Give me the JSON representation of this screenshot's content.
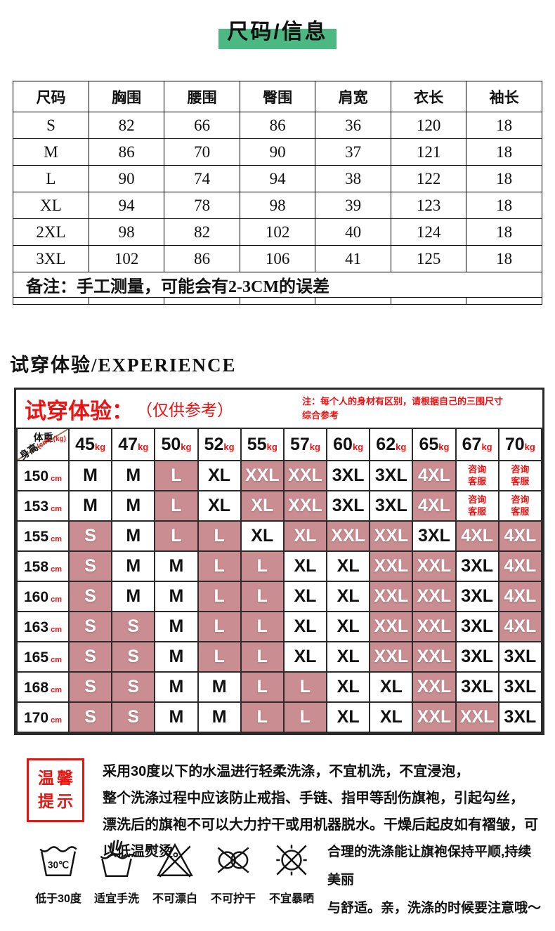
{
  "titles": {
    "size_title": "尺码/信息",
    "experience_heading": "试穿体验/EXPERIENCE"
  },
  "colors": {
    "green_highlight": "#4cb983",
    "pink_cell": "#ca8d91",
    "red_accent": "#ee1111",
    "table_border_dark": "#2b2b2b",
    "corner_diagonal": "#a1825d"
  },
  "size_table": {
    "headers": [
      "尺码",
      "胸围",
      "腰围",
      "臀围",
      "肩宽",
      "衣长",
      "袖长"
    ],
    "rows": [
      [
        "S",
        "82",
        "66",
        "86",
        "36",
        "120",
        "18"
      ],
      [
        "M",
        "86",
        "70",
        "90",
        "37",
        "121",
        "18"
      ],
      [
        "L",
        "90",
        "74",
        "94",
        "38",
        "122",
        "18"
      ],
      [
        "XL",
        "94",
        "78",
        "98",
        "39",
        "123",
        "18"
      ],
      [
        "2XL",
        "98",
        "82",
        "102",
        "40",
        "124",
        "18"
      ],
      [
        "3XL",
        "102",
        "86",
        "106",
        "41",
        "125",
        "18"
      ]
    ],
    "note": "备注：手工测量，可能会有2-3CM的误差"
  },
  "experience_table": {
    "title": "试穿体验：",
    "title_sub": "（仅供参考）",
    "note_line1": "注：每个人的身材有区别，请根据自己的三围尺寸",
    "note_line2": "综合参考",
    "corner": {
      "weight_label": "体重",
      "weight_unit": "(kg)",
      "height_label": "身高",
      "height_unit": "(cm)"
    },
    "weights": [
      {
        "num": "45",
        "unit": "kg"
      },
      {
        "num": "47",
        "unit": "kg"
      },
      {
        "num": "50",
        "unit": "kg"
      },
      {
        "num": "52",
        "unit": "kg"
      },
      {
        "num": "55",
        "unit": "kg"
      },
      {
        "num": "57",
        "unit": "kg"
      },
      {
        "num": "60",
        "unit": "kg"
      },
      {
        "num": "62",
        "unit": "kg"
      },
      {
        "num": "65",
        "unit": "kg"
      },
      {
        "num": "67",
        "unit": "kg"
      },
      {
        "num": "70",
        "unit": "kg"
      }
    ],
    "rows": [
      {
        "height": "150",
        "unit": "cm",
        "cells": [
          {
            "v": "M"
          },
          {
            "v": "M"
          },
          {
            "v": "L",
            "hl": true
          },
          {
            "v": "XL"
          },
          {
            "v": "XXL",
            "hl": true
          },
          {
            "v": "XXL",
            "hl": true
          },
          {
            "v": "3XL"
          },
          {
            "v": "3XL"
          },
          {
            "v": "4XL",
            "hl": true
          },
          {
            "v": "咨询客服",
            "service": true
          },
          {
            "v": "咨询客服",
            "service": true
          }
        ]
      },
      {
        "height": "153",
        "unit": "cm",
        "cells": [
          {
            "v": "M"
          },
          {
            "v": "M"
          },
          {
            "v": "L",
            "hl": true
          },
          {
            "v": "XL"
          },
          {
            "v": "XL",
            "hl": true
          },
          {
            "v": "XXL",
            "hl": true
          },
          {
            "v": "3XL"
          },
          {
            "v": "3XL"
          },
          {
            "v": "4XL",
            "hl": true
          },
          {
            "v": "咨询客服",
            "service": true
          },
          {
            "v": "咨询客服",
            "service": true
          }
        ]
      },
      {
        "height": "155",
        "unit": "cm",
        "cells": [
          {
            "v": "S",
            "hl": true
          },
          {
            "v": "M"
          },
          {
            "v": "L",
            "hl": true
          },
          {
            "v": "L",
            "hl": true
          },
          {
            "v": "XL"
          },
          {
            "v": "XL",
            "hl": true
          },
          {
            "v": "XXL",
            "hl": true
          },
          {
            "v": "XXL",
            "hl": true
          },
          {
            "v": "3XL"
          },
          {
            "v": "4XL",
            "hl": true
          },
          {
            "v": "4XL",
            "hl": true
          }
        ]
      },
      {
        "height": "158",
        "unit": "cm",
        "cells": [
          {
            "v": "S",
            "hl": true
          },
          {
            "v": "M"
          },
          {
            "v": "M"
          },
          {
            "v": "L",
            "hl": true
          },
          {
            "v": "L",
            "hl": true
          },
          {
            "v": "XL"
          },
          {
            "v": "XL"
          },
          {
            "v": "XXL",
            "hl": true
          },
          {
            "v": "XXL",
            "hl": true
          },
          {
            "v": "3XL"
          },
          {
            "v": "4XL",
            "hl": true
          }
        ]
      },
      {
        "height": "160",
        "unit": "cm",
        "cells": [
          {
            "v": "S",
            "hl": true
          },
          {
            "v": "M"
          },
          {
            "v": "M"
          },
          {
            "v": "L",
            "hl": true
          },
          {
            "v": "L",
            "hl": true
          },
          {
            "v": "XL"
          },
          {
            "v": "XL"
          },
          {
            "v": "XXL",
            "hl": true
          },
          {
            "v": "XXL",
            "hl": true
          },
          {
            "v": "3XL"
          },
          {
            "v": "4XL",
            "hl": true
          }
        ]
      },
      {
        "height": "163",
        "unit": "cm",
        "cells": [
          {
            "v": "S",
            "hl": true
          },
          {
            "v": "S",
            "hl": true
          },
          {
            "v": "M"
          },
          {
            "v": "L",
            "hl": true
          },
          {
            "v": "L",
            "hl": true
          },
          {
            "v": "XL"
          },
          {
            "v": "XL"
          },
          {
            "v": "XXL",
            "hl": true
          },
          {
            "v": "XXL",
            "hl": true
          },
          {
            "v": "3XL"
          },
          {
            "v": "4XL",
            "hl": true
          }
        ]
      },
      {
        "height": "165",
        "unit": "cm",
        "cells": [
          {
            "v": "S",
            "hl": true
          },
          {
            "v": "S",
            "hl": true
          },
          {
            "v": "M"
          },
          {
            "v": "L",
            "hl": true
          },
          {
            "v": "L",
            "hl": true
          },
          {
            "v": "XL"
          },
          {
            "v": "XL"
          },
          {
            "v": "XXL",
            "hl": true
          },
          {
            "v": "XXL",
            "hl": true
          },
          {
            "v": "3XL"
          },
          {
            "v": "3XL"
          }
        ]
      },
      {
        "height": "168",
        "unit": "cm",
        "cells": [
          {
            "v": "S",
            "hl": true
          },
          {
            "v": "S",
            "hl": true
          },
          {
            "v": "M"
          },
          {
            "v": "M"
          },
          {
            "v": "L",
            "hl": true
          },
          {
            "v": "L",
            "hl": true
          },
          {
            "v": "XL"
          },
          {
            "v": "XL"
          },
          {
            "v": "XXL",
            "hl": true
          },
          {
            "v": "3XL"
          },
          {
            "v": "3XL"
          }
        ]
      },
      {
        "height": "170",
        "unit": "cm",
        "cells": [
          {
            "v": "S",
            "hl": true
          },
          {
            "v": "S",
            "hl": true
          },
          {
            "v": "M"
          },
          {
            "v": "M"
          },
          {
            "v": "L",
            "hl": true
          },
          {
            "v": "L",
            "hl": true
          },
          {
            "v": "XL"
          },
          {
            "v": "XL"
          },
          {
            "v": "XXL",
            "hl": true
          },
          {
            "v": "XXL",
            "hl": true
          },
          {
            "v": "3XL"
          }
        ]
      }
    ]
  },
  "tips": {
    "badge_line1": "温馨",
    "badge_line2": "提示",
    "lines": [
      "采用30度以下的水温进行轻柔洗涤，不宜机洗，不宜浸泡，",
      "整个洗涤过程中应该防止戒指、手链、指甲等刮伤旗袍，引起勾丝，",
      "漂洗后的旗袍不可以大力拧干或用机器脱水。干燥后起皮如有褶皱，可以低温熨烫。"
    ]
  },
  "care": {
    "icons": [
      {
        "name": "wash-30-icon",
        "label": "低于30度",
        "temp": "30℃"
      },
      {
        "name": "hand-wash-icon",
        "label": "适宜手洗"
      },
      {
        "name": "no-bleach-icon",
        "label": "不可漂白"
      },
      {
        "name": "no-wring-icon",
        "label": "不可拧干"
      },
      {
        "name": "no-sun-icon",
        "label": "不宜暴晒"
      }
    ],
    "note_line1": "合理的洗涤能让旗袍保持平顺,持续美丽",
    "note_line2": "与舒适。亲，洗涤的时候要注意哦～"
  }
}
